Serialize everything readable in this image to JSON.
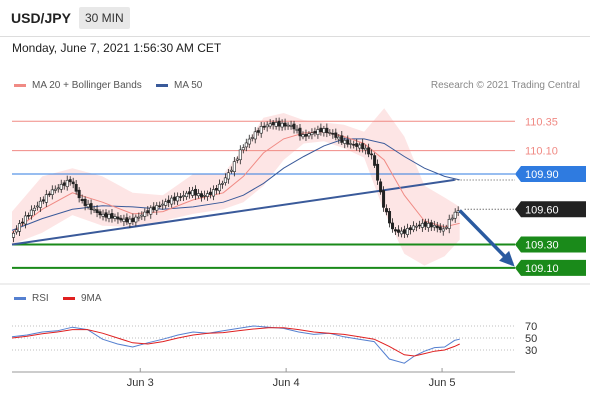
{
  "header": {
    "symbol": "USD/JPY",
    "timeframe": "30 MIN",
    "datetime": "Monday, June 7, 2021 1:56:30 AM CET"
  },
  "legend": {
    "ma20_label": "MA 20 + Bollinger Bands",
    "ma50_label": "MA 50",
    "copyright": "Research © 2021 Trading Central",
    "rsi_label": "RSI",
    "ma9_label": "9MA"
  },
  "colors": {
    "ma20": "#f08a84",
    "ma50": "#3a5a9a",
    "band": "#fcdcdc",
    "resistance": "#f08a84",
    "pivot": "#2f7be0",
    "support": "#1a8a1a",
    "trend": "#3a5a9a",
    "price_tag": "#222222",
    "rsi": "#5580d0",
    "rsi_ma": "#e02020"
  },
  "chart_data": [
    {
      "type": "line",
      "title": "USD/JPY",
      "subtitle": "30 MIN",
      "ylim": [
        108.98,
        110.48
      ],
      "xlim": [
        0,
        100
      ],
      "x_ticks": [
        {
          "label": "Jun 3",
          "x": 25.5
        },
        {
          "label": "Jun 4",
          "x": 54.5
        },
        {
          "label": "Jun 5",
          "x": 85.5
        }
      ],
      "levels": [
        {
          "value": 110.35,
          "label": "110.35",
          "kind": "resistance"
        },
        {
          "value": 110.1,
          "label": "110.10",
          "kind": "resistance"
        },
        {
          "value": 109.9,
          "label": "109.90",
          "kind": "pivot"
        },
        {
          "value": 109.6,
          "label": "109.60",
          "kind": "last"
        },
        {
          "value": 109.3,
          "label": "109.30",
          "kind": "support"
        },
        {
          "value": 109.1,
          "label": "109.10",
          "kind": "support"
        }
      ],
      "trendline": {
        "x": [
          0,
          88
        ],
        "y": [
          109.3,
          109.85
        ]
      },
      "forecast_arrow": {
        "x": [
          89,
          99.5
        ],
        "y": [
          109.59,
          109.13
        ]
      },
      "series": [
        {
          "name": "Price",
          "x": [
            0,
            2,
            4,
            6,
            8,
            10,
            12,
            14,
            16,
            18,
            20,
            22,
            24,
            26,
            28,
            30,
            32,
            34,
            36,
            38,
            40,
            42,
            44,
            46,
            48,
            50,
            52,
            54,
            56,
            58,
            60,
            62,
            64,
            66,
            68,
            70,
            72,
            74,
            76,
            78,
            80,
            82,
            84,
            86,
            88,
            89
          ],
          "values": [
            109.36,
            109.48,
            109.58,
            109.66,
            109.75,
            109.8,
            109.85,
            109.67,
            109.61,
            109.55,
            109.54,
            109.51,
            109.5,
            109.55,
            109.6,
            109.64,
            109.68,
            109.71,
            109.75,
            109.71,
            109.74,
            109.82,
            109.95,
            110.12,
            110.22,
            110.3,
            110.33,
            110.32,
            110.31,
            110.22,
            110.25,
            110.28,
            110.24,
            110.18,
            110.15,
            110.13,
            110.05,
            109.65,
            109.42,
            109.4,
            109.45,
            109.47,
            109.46,
            109.42,
            109.55,
            109.59
          ]
        },
        {
          "name": "MA 20",
          "x": [
            0,
            6,
            12,
            18,
            24,
            30,
            36,
            42,
            46,
            50,
            54,
            58,
            62,
            66,
            70,
            74,
            78,
            82,
            86,
            89
          ],
          "values": [
            109.4,
            109.6,
            109.74,
            109.66,
            109.56,
            109.58,
            109.68,
            109.74,
            109.88,
            110.08,
            110.2,
            110.25,
            110.26,
            110.22,
            110.16,
            110.02,
            109.72,
            109.5,
            109.45,
            109.48
          ]
        },
        {
          "name": "MA 50",
          "x": [
            0,
            6,
            12,
            18,
            24,
            30,
            36,
            42,
            46,
            50,
            54,
            58,
            62,
            66,
            70,
            74,
            78,
            82,
            86,
            89
          ],
          "values": [
            109.42,
            109.52,
            109.6,
            109.63,
            109.62,
            109.6,
            109.62,
            109.66,
            109.72,
            109.82,
            109.95,
            110.05,
            110.14,
            110.2,
            110.2,
            110.16,
            110.05,
            109.95,
            109.88,
            109.85
          ]
        },
        {
          "name": "BB Upper",
          "x": [
            0,
            6,
            12,
            18,
            24,
            30,
            36,
            42,
            46,
            50,
            54,
            58,
            62,
            66,
            70,
            74,
            78,
            82,
            86,
            89
          ],
          "values": [
            109.58,
            109.88,
            109.95,
            109.88,
            109.74,
            109.72,
            109.9,
            109.9,
            110.12,
            110.38,
            110.42,
            110.36,
            110.34,
            110.32,
            110.26,
            110.46,
            110.22,
            109.8,
            109.7,
            109.62
          ]
        },
        {
          "name": "BB Lower",
          "x": [
            0,
            6,
            12,
            18,
            24,
            30,
            36,
            42,
            46,
            50,
            54,
            58,
            62,
            66,
            70,
            74,
            78,
            82,
            86,
            89
          ],
          "values": [
            109.3,
            109.4,
            109.55,
            109.46,
            109.45,
            109.5,
            109.56,
            109.6,
            109.66,
            109.8,
            110.02,
            110.16,
            110.18,
            110.12,
            110.04,
            109.58,
            109.22,
            109.12,
            109.2,
            109.34
          ]
        }
      ]
    },
    {
      "type": "line",
      "title": "RSI",
      "ylim": [
        0,
        100
      ],
      "y_ticks": [
        70,
        50,
        30
      ],
      "series": [
        {
          "name": "RSI",
          "x": [
            0,
            3,
            6,
            9,
            12,
            15,
            18,
            21,
            24,
            27,
            30,
            33,
            36,
            39,
            42,
            45,
            48,
            51,
            54,
            57,
            60,
            63,
            66,
            69,
            72,
            75,
            78,
            80,
            82,
            84,
            86,
            88,
            89
          ],
          "values": [
            52,
            55,
            60,
            62,
            68,
            64,
            48,
            40,
            35,
            42,
            48,
            55,
            60,
            58,
            62,
            66,
            70,
            68,
            66,
            60,
            56,
            58,
            52,
            48,
            44,
            15,
            8,
            20,
            28,
            34,
            35,
            46,
            48
          ]
        },
        {
          "name": "9MA",
          "x": [
            0,
            3,
            6,
            9,
            12,
            15,
            18,
            21,
            24,
            27,
            30,
            33,
            36,
            39,
            42,
            45,
            48,
            51,
            54,
            57,
            60,
            63,
            66,
            69,
            72,
            75,
            78,
            80,
            82,
            84,
            86,
            88,
            89
          ],
          "values": [
            50,
            53,
            57,
            60,
            64,
            64,
            58,
            50,
            42,
            40,
            44,
            50,
            55,
            58,
            59,
            62,
            65,
            67,
            67,
            64,
            60,
            58,
            56,
            52,
            48,
            36,
            22,
            20,
            24,
            28,
            30,
            36,
            40
          ]
        }
      ]
    }
  ]
}
